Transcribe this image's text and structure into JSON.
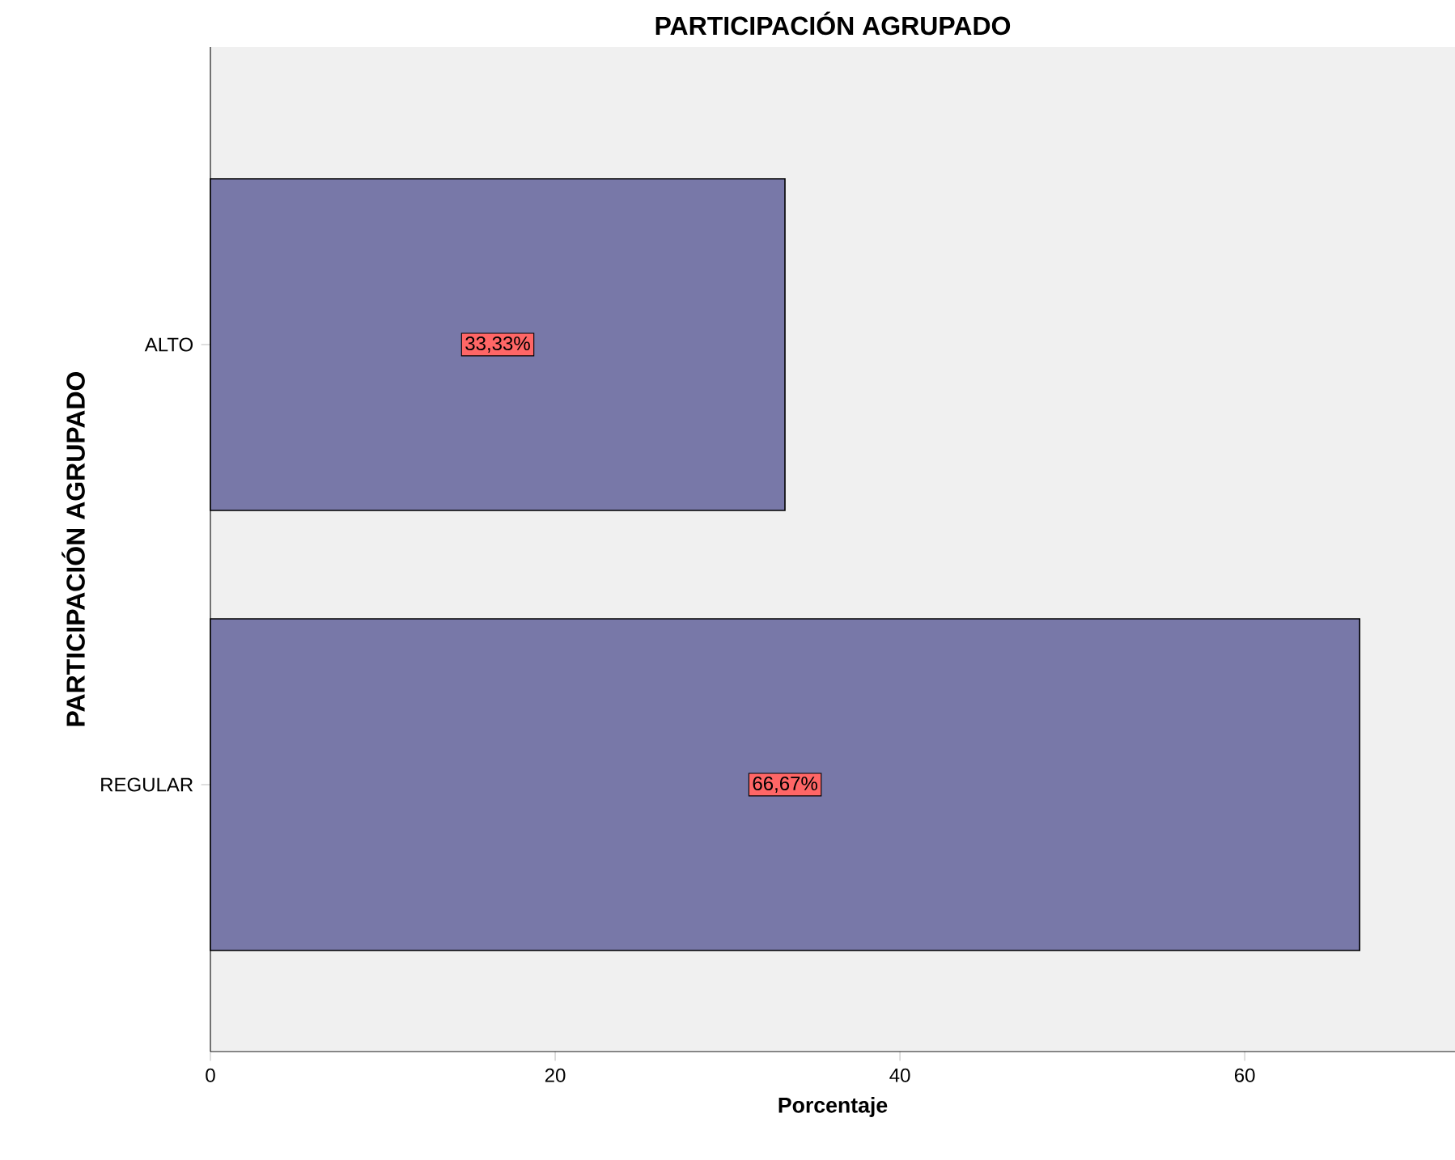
{
  "chart_data": {
    "type": "bar",
    "orientation": "horizontal",
    "title": "PARTICIPACIÓN AGRUPADO",
    "xlabel": "Porcentaje",
    "ylabel": "PARTICIPACIÓN AGRUPADO",
    "categories": [
      "ALTO",
      "REGULAR"
    ],
    "values": [
      33.33,
      66.67
    ],
    "value_labels": [
      "33,33%",
      "66,67%"
    ],
    "color": "#7878a8",
    "xlim": [
      0,
      72.2
    ],
    "xticks": [
      0,
      20,
      40,
      60
    ]
  }
}
